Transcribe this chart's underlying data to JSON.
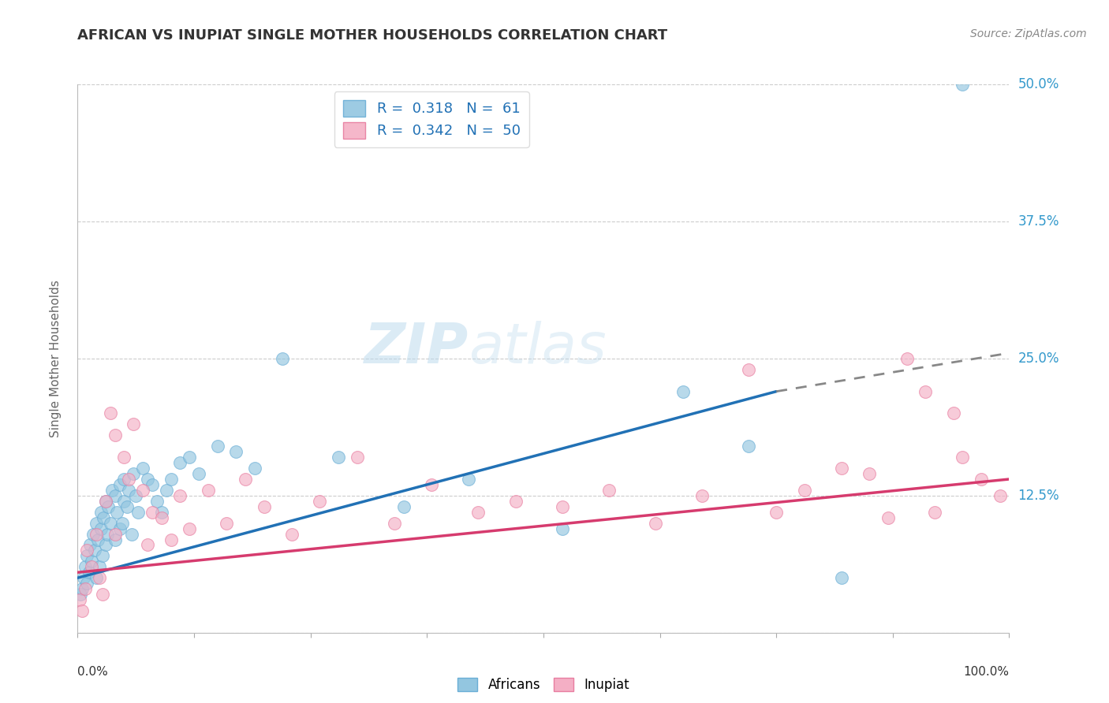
{
  "title": "AFRICAN VS INUPIAT SINGLE MOTHER HOUSEHOLDS CORRELATION CHART",
  "source": "Source: ZipAtlas.com",
  "ylabel": "Single Mother Households",
  "xlim": [
    0,
    100
  ],
  "ylim": [
    0,
    50
  ],
  "yticks": [
    0,
    12.5,
    25.0,
    37.5,
    50.0
  ],
  "ytick_labels": [
    "",
    "12.5%",
    "25.0%",
    "37.5%",
    "50.0%"
  ],
  "african_color": "#93c6e0",
  "african_edge_color": "#6aaed6",
  "inupiat_color": "#f4afc5",
  "inupiat_edge_color": "#e87da0",
  "african_line_color": "#2171b5",
  "inupiat_line_color": "#d63b6e",
  "african_R": 0.318,
  "african_N": 61,
  "inupiat_R": 0.342,
  "inupiat_N": 50,
  "background_color": "#ffffff",
  "grid_color": "#cccccc",
  "right_axis_color": "#3399cc",
  "title_color": "#333333",
  "source_color": "#888888",
  "ylabel_color": "#666666",
  "watermark_color": "#cce5f5",
  "africans_x": [
    0.3,
    0.5,
    0.6,
    0.8,
    1.0,
    1.0,
    1.2,
    1.3,
    1.5,
    1.7,
    1.8,
    2.0,
    2.0,
    2.2,
    2.3,
    2.5,
    2.5,
    2.7,
    2.8,
    3.0,
    3.0,
    3.2,
    3.3,
    3.5,
    3.7,
    4.0,
    4.0,
    4.2,
    4.5,
    4.5,
    4.8,
    5.0,
    5.0,
    5.3,
    5.5,
    5.8,
    6.0,
    6.2,
    6.5,
    7.0,
    7.5,
    8.0,
    8.5,
    9.0,
    9.5,
    10.0,
    11.0,
    12.0,
    13.0,
    15.0,
    17.0,
    19.0,
    22.0,
    28.0,
    35.0,
    42.0,
    52.0,
    65.0,
    72.0,
    82.0,
    95.0
  ],
  "africans_y": [
    3.5,
    4.0,
    5.0,
    6.0,
    4.5,
    7.0,
    5.5,
    8.0,
    6.5,
    9.0,
    7.5,
    5.0,
    10.0,
    8.5,
    6.0,
    9.5,
    11.0,
    7.0,
    10.5,
    8.0,
    12.0,
    9.0,
    11.5,
    10.0,
    13.0,
    8.5,
    12.5,
    11.0,
    9.5,
    13.5,
    10.0,
    12.0,
    14.0,
    11.5,
    13.0,
    9.0,
    14.5,
    12.5,
    11.0,
    15.0,
    14.0,
    13.5,
    12.0,
    11.0,
    13.0,
    14.0,
    15.5,
    16.0,
    14.5,
    17.0,
    16.5,
    15.0,
    25.0,
    16.0,
    11.5,
    14.0,
    9.5,
    22.0,
    17.0,
    5.0,
    50.0
  ],
  "inupiat_x": [
    0.2,
    0.5,
    0.8,
    1.0,
    1.5,
    2.0,
    2.3,
    2.7,
    3.0,
    3.5,
    4.0,
    4.0,
    5.0,
    5.5,
    6.0,
    7.0,
    7.5,
    8.0,
    9.0,
    10.0,
    11.0,
    12.0,
    14.0,
    16.0,
    18.0,
    20.0,
    23.0,
    26.0,
    30.0,
    34.0,
    38.0,
    43.0,
    47.0,
    52.0,
    57.0,
    62.0,
    67.0,
    72.0,
    75.0,
    78.0,
    82.0,
    85.0,
    87.0,
    89.0,
    91.0,
    92.0,
    94.0,
    95.0,
    97.0,
    99.0
  ],
  "inupiat_y": [
    3.0,
    2.0,
    4.0,
    7.5,
    6.0,
    9.0,
    5.0,
    3.5,
    12.0,
    20.0,
    18.0,
    9.0,
    16.0,
    14.0,
    19.0,
    13.0,
    8.0,
    11.0,
    10.5,
    8.5,
    12.5,
    9.5,
    13.0,
    10.0,
    14.0,
    11.5,
    9.0,
    12.0,
    16.0,
    10.0,
    13.5,
    11.0,
    12.0,
    11.5,
    13.0,
    10.0,
    12.5,
    24.0,
    11.0,
    13.0,
    15.0,
    14.5,
    10.5,
    25.0,
    22.0,
    11.0,
    20.0,
    16.0,
    14.0,
    12.5
  ],
  "af_line_x0": 0,
  "af_line_y0": 5.0,
  "af_line_x1": 75,
  "af_line_y1": 22.0,
  "af_dash_x0": 75,
  "af_dash_y0": 22.0,
  "af_dash_x1": 100,
  "af_dash_y1": 25.5,
  "in_line_x0": 0,
  "in_line_y0": 5.5,
  "in_line_x1": 100,
  "in_line_y1": 14.0
}
